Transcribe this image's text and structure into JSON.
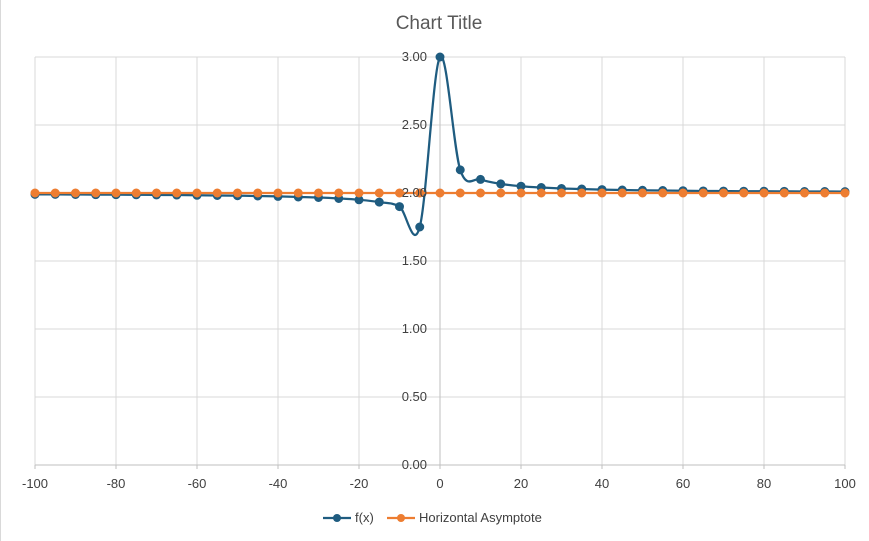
{
  "chart_data": {
    "type": "scatter",
    "title": "Chart Title",
    "xlabel": "",
    "ylabel": "",
    "xlim": [
      -100,
      100
    ],
    "ylim": [
      0,
      3
    ],
    "x_ticks": [
      -100,
      -80,
      -60,
      -40,
      -20,
      0,
      20,
      40,
      60,
      80,
      100
    ],
    "y_ticks": [
      0,
      0.5,
      1,
      1.5,
      2,
      2.5,
      3
    ],
    "x_tick_labels": [
      "-100",
      "-80",
      "-60",
      "-40",
      "-20",
      "0",
      "20",
      "40",
      "60",
      "80",
      "100"
    ],
    "y_tick_labels": [
      "0.00",
      "0.50",
      "1.00",
      "1.50",
      "2.00",
      "2.50",
      "3.00"
    ],
    "grid": true,
    "legend_position": "bottom",
    "series": [
      {
        "name": "f(x)",
        "color": "#1f5c80",
        "smooth": true,
        "x": [
          -100,
          -95,
          -90,
          -85,
          -80,
          -75,
          -70,
          -65,
          -60,
          -55,
          -50,
          -45,
          -40,
          -35,
          -30,
          -25,
          -20,
          -15,
          -10,
          -5,
          0,
          5,
          10,
          15,
          20,
          25,
          30,
          35,
          40,
          45,
          50,
          55,
          60,
          65,
          70,
          75,
          80,
          85,
          90,
          95,
          100
        ],
        "values": [
          1.99,
          1.99,
          1.989,
          1.988,
          1.988,
          1.987,
          1.986,
          1.985,
          1.983,
          1.982,
          1.98,
          1.978,
          1.975,
          1.971,
          1.967,
          1.96,
          1.95,
          1.933,
          1.9,
          1.75,
          3.0,
          2.17,
          2.1,
          2.067,
          2.05,
          2.04,
          2.033,
          2.029,
          2.025,
          2.022,
          2.02,
          2.018,
          2.017,
          2.015,
          2.014,
          2.013,
          2.013,
          2.012,
          2.011,
          2.011,
          2.01
        ]
      },
      {
        "name": "Horizontal Asymptote",
        "color": "#ed7d31",
        "smooth": false,
        "x": [
          -100,
          -95,
          -90,
          -85,
          -80,
          -75,
          -70,
          -65,
          -60,
          -55,
          -50,
          -45,
          -40,
          -35,
          -30,
          -25,
          -20,
          -15,
          -10,
          -5,
          0,
          5,
          10,
          15,
          20,
          25,
          30,
          35,
          40,
          45,
          50,
          55,
          60,
          65,
          70,
          75,
          80,
          85,
          90,
          95,
          100
        ],
        "values": [
          2,
          2,
          2,
          2,
          2,
          2,
          2,
          2,
          2,
          2,
          2,
          2,
          2,
          2,
          2,
          2,
          2,
          2,
          2,
          2,
          2,
          2,
          2,
          2,
          2,
          2,
          2,
          2,
          2,
          2,
          2,
          2,
          2,
          2,
          2,
          2,
          2,
          2,
          2,
          2,
          2
        ]
      }
    ]
  }
}
